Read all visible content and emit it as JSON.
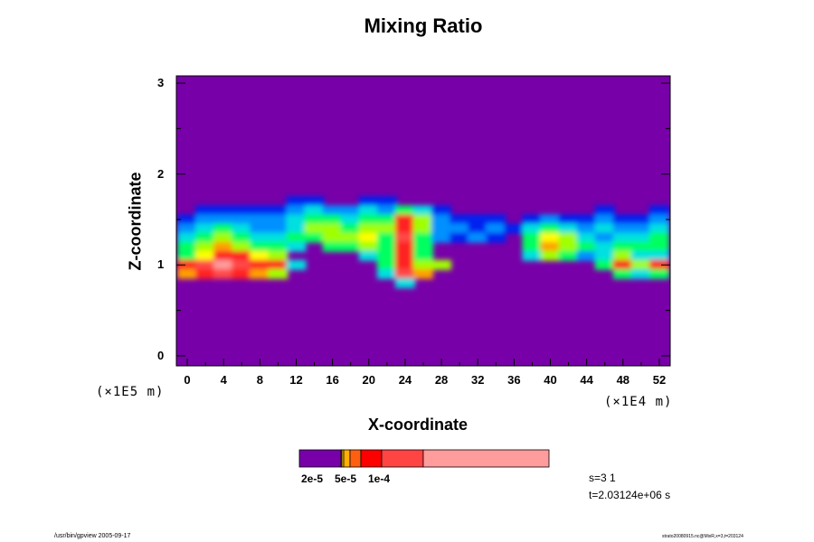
{
  "chart_data": {
    "type": "heatmap",
    "title": "Mixing Ratio",
    "xlabel": "X-coordinate",
    "ylabel": "Z-coordinate",
    "x_unit": "(×1E4 m)",
    "y_unit": "(×1E5 m)",
    "xlim": [
      -1.2,
      53.2
    ],
    "ylim": [
      -0.11,
      3.08
    ],
    "x_ticks": [
      "0",
      "4",
      "8",
      "12",
      "16",
      "20",
      "24",
      "28",
      "32",
      "36",
      "40",
      "44",
      "48",
      "52"
    ],
    "y_ticks": [
      "0",
      "1",
      "2",
      "3"
    ],
    "grid_x_centers": [
      0,
      2,
      4,
      6,
      8,
      10,
      12,
      14,
      16,
      18,
      20,
      22,
      24,
      26,
      28,
      30,
      32,
      34,
      36,
      38,
      40,
      42,
      44,
      46,
      48,
      50,
      52
    ],
    "grid_z_rows": [
      1.7,
      1.6,
      1.5,
      1.4,
      1.3,
      1.2,
      1.1,
      1.0,
      0.9,
      0.8
    ],
    "levels": [
      [
        0,
        0,
        0,
        0,
        0,
        0,
        1,
        1,
        0,
        0,
        1,
        1,
        0,
        0,
        0,
        0,
        0,
        0,
        0,
        0,
        0,
        0,
        0,
        0,
        0,
        0,
        0
      ],
      [
        0,
        1,
        1,
        1,
        1,
        1,
        2,
        3,
        2,
        2,
        3,
        2,
        4,
        3,
        1,
        0,
        0,
        0,
        0,
        0,
        0,
        0,
        0,
        1,
        0,
        0,
        1
      ],
      [
        1,
        2,
        2,
        2,
        2,
        2,
        3,
        4,
        4,
        3,
        4,
        4,
        8,
        5,
        2,
        1,
        1,
        1,
        0,
        1,
        2,
        1,
        1,
        2,
        1,
        1,
        2
      ],
      [
        2,
        3,
        4,
        3,
        2,
        2,
        3,
        5,
        5,
        4,
        5,
        5,
        8,
        5,
        2,
        2,
        1,
        2,
        1,
        3,
        4,
        3,
        2,
        3,
        2,
        2,
        3
      ],
      [
        3,
        4,
        5,
        4,
        3,
        3,
        4,
        4,
        5,
        5,
        6,
        4,
        9,
        4,
        2,
        1,
        2,
        1,
        0,
        4,
        6,
        5,
        3,
        2,
        3,
        3,
        4
      ],
      [
        4,
        5,
        7,
        5,
        4,
        4,
        3,
        0,
        4,
        4,
        5,
        4,
        8,
        4,
        0,
        0,
        0,
        0,
        0,
        4,
        7,
        5,
        4,
        3,
        4,
        4,
        4
      ],
      [
        4,
        6,
        8,
        8,
        6,
        5,
        0,
        0,
        0,
        0,
        3,
        4,
        8,
        4,
        0,
        0,
        0,
        0,
        0,
        3,
        5,
        4,
        2,
        3,
        5,
        3,
        3
      ],
      [
        8,
        9,
        10,
        9,
        8,
        8,
        3,
        0,
        0,
        0,
        0,
        4,
        8,
        5,
        5,
        0,
        0,
        0,
        0,
        0,
        0,
        0,
        0,
        4,
        8,
        5,
        8
      ],
      [
        7,
        8,
        9,
        8,
        7,
        5,
        0,
        0,
        0,
        0,
        0,
        3,
        9,
        7,
        0,
        0,
        0,
        0,
        0,
        0,
        0,
        0,
        0,
        0,
        4,
        3,
        4
      ],
      [
        0,
        0,
        0,
        0,
        0,
        0,
        0,
        0,
        0,
        0,
        0,
        0,
        3,
        0,
        0,
        0,
        0,
        0,
        0,
        0,
        0,
        0,
        0,
        0,
        0,
        0,
        0
      ]
    ],
    "palette": [
      "#7700a8",
      "#0020f0",
      "#0090ff",
      "#00e0e0",
      "#00ff60",
      "#a0ff00",
      "#ffff00",
      "#ffa000",
      "#ff2020",
      "#ff4848",
      "#ff9c9c"
    ],
    "colorbar": {
      "segments": [
        {
          "color": "#7700a8",
          "weight": 46
        },
        {
          "color": "#ffff00",
          "weight": 1
        },
        {
          "color": "#ffd000",
          "weight": 2
        },
        {
          "color": "#ffb000",
          "weight": 7
        },
        {
          "color": "#ff6010",
          "weight": 12
        },
        {
          "color": "#ff0000",
          "weight": 23
        },
        {
          "color": "#ff4444",
          "weight": 46
        },
        {
          "color": "#ff9c9c",
          "weight": 139
        }
      ],
      "labels": [
        "2e-5",
        "5e-5",
        "1e-4"
      ]
    }
  },
  "info": {
    "s": "s=3 1",
    "t": "t=2.03124e+06 s"
  },
  "footer": {
    "left": "/usr/bin/gpview 2005-09-17",
    "right": "strato20080915.nc@MixR,x=3,t=203124"
  }
}
